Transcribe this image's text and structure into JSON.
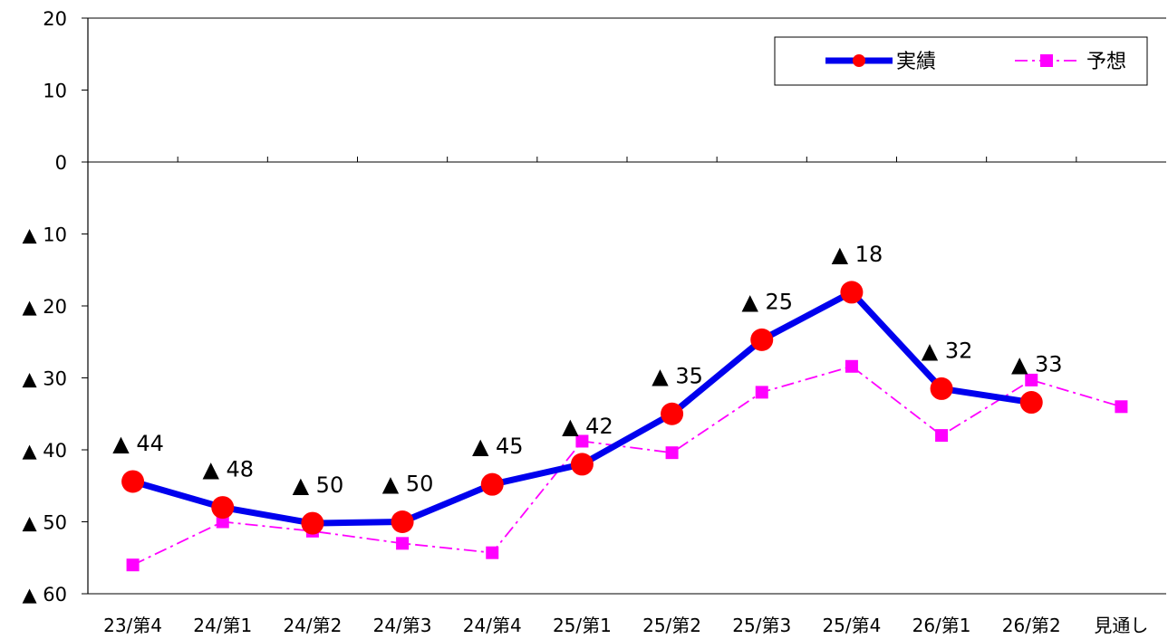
{
  "chart_data": {
    "type": "line",
    "categories": [
      "23/第4",
      "24/第1",
      "24/第2",
      "24/第3",
      "24/第4",
      "25/第1",
      "25/第2",
      "25/第3",
      "25/第4",
      "26/第1",
      "26/第2",
      "見通し"
    ],
    "ylim": [
      -60,
      20
    ],
    "y_ticks": [
      20,
      10,
      0,
      -10,
      -20,
      -30,
      -40,
      -50,
      -60
    ],
    "y_tick_labels": [
      "20",
      "10",
      "0",
      "▲ 10",
      "▲ 20",
      "▲ 30",
      "▲ 40",
      "▲ 50",
      "▲ 60"
    ],
    "grid": false,
    "legend_position": "top-right",
    "series": [
      {
        "name": "実績",
        "color": "#0000ee",
        "marker": "circle",
        "marker_color": "#ff0000",
        "values": [
          -44.4,
          -48.0,
          -50.2,
          -50.0,
          -44.8,
          -42.0,
          -35.0,
          -24.7,
          -18.1,
          -31.5,
          -33.4,
          null
        ],
        "data_labels": [
          "▲ 44",
          "▲ 48",
          "▲ 50",
          "▲ 50",
          "▲ 45",
          "▲ 42",
          "▲ 35",
          "▲ 25",
          "▲ 18",
          "▲ 32",
          "▲ 33",
          null
        ]
      },
      {
        "name": "予想",
        "color": "#ff00ff",
        "marker": "square",
        "line_style": "dash-dot",
        "values": [
          -56.0,
          -50.0,
          -51.3,
          -53.0,
          -54.3,
          -38.8,
          -40.4,
          -32.0,
          -28.4,
          -38.0,
          -30.3,
          -34.0
        ],
        "data_labels": null
      }
    ]
  }
}
